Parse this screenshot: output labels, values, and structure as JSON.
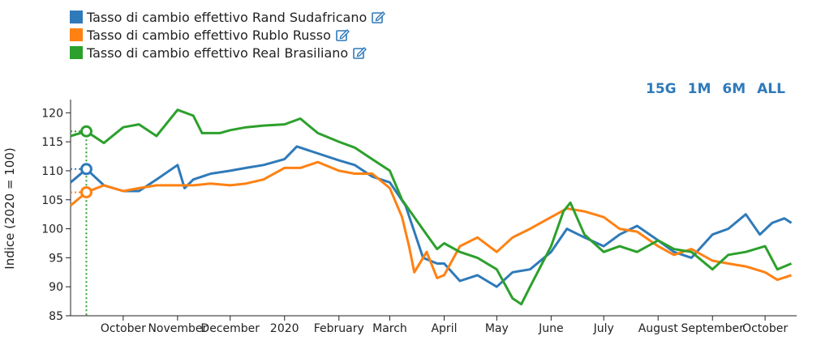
{
  "legend": {
    "items": [
      {
        "label": "Tasso di cambio effettivo Rand Sudafricano",
        "color": "#2f7ab9",
        "icon": "edit-icon"
      },
      {
        "label": "Tasso di cambio effettivo Rublo Russo",
        "color": "#ff8112",
        "icon": "edit-icon"
      },
      {
        "label": "Tasso di cambio effettivo Real Brasiliano",
        "color": "#2ca02c",
        "icon": "edit-icon"
      }
    ]
  },
  "range_buttons": [
    "15G",
    "1M",
    "6M",
    "ALL"
  ],
  "chart_data": {
    "type": "line",
    "ylabel": "Indice (2020 = 100)",
    "ylim": [
      85,
      122
    ],
    "yticks": [
      85,
      90,
      95,
      100,
      105,
      110,
      115,
      120
    ],
    "xlim": [
      "2019-09-01",
      "2020-10-19"
    ],
    "xticks": [
      {
        "date": "2019-10-01",
        "label": "October"
      },
      {
        "date": "2019-11-01",
        "label": "November"
      },
      {
        "date": "2019-12-01",
        "label": "December"
      },
      {
        "date": "2020-01-01",
        "label": "2020"
      },
      {
        "date": "2020-02-01",
        "label": "February"
      },
      {
        "date": "2020-03-01",
        "label": "March"
      },
      {
        "date": "2020-04-01",
        "label": "April"
      },
      {
        "date": "2020-05-01",
        "label": "May"
      },
      {
        "date": "2020-06-01",
        "label": "June"
      },
      {
        "date": "2020-07-01",
        "label": "July"
      },
      {
        "date": "2020-08-01",
        "label": "August"
      },
      {
        "date": "2020-09-01",
        "label": "September"
      },
      {
        "date": "2020-10-01",
        "label": "October"
      }
    ],
    "hover": {
      "date": "2019-09-10",
      "values": [
        110.3,
        106.3,
        116.8
      ]
    },
    "series": [
      {
        "name": "Tasso di cambio effettivo Rand Sudafricano",
        "color": "#2f7ab9",
        "points": [
          [
            "2019-09-01",
            108
          ],
          [
            "2019-09-10",
            110.3
          ],
          [
            "2019-09-20",
            107.5
          ],
          [
            "2019-10-01",
            106.5
          ],
          [
            "2019-10-10",
            106.5
          ],
          [
            "2019-10-20",
            108.5
          ],
          [
            "2019-11-01",
            111
          ],
          [
            "2019-11-05",
            107
          ],
          [
            "2019-11-10",
            108.5
          ],
          [
            "2019-11-20",
            109.5
          ],
          [
            "2019-12-01",
            110
          ],
          [
            "2019-12-10",
            110.5
          ],
          [
            "2019-12-20",
            111
          ],
          [
            "2020-01-01",
            112
          ],
          [
            "2020-01-08",
            114.2
          ],
          [
            "2020-01-20",
            113
          ],
          [
            "2020-02-01",
            111.8
          ],
          [
            "2020-02-10",
            111
          ],
          [
            "2020-02-20",
            109
          ],
          [
            "2020-03-01",
            108
          ],
          [
            "2020-03-10",
            104
          ],
          [
            "2020-03-20",
            95
          ],
          [
            "2020-03-28",
            94
          ],
          [
            "2020-04-01",
            94
          ],
          [
            "2020-04-10",
            91
          ],
          [
            "2020-04-20",
            92
          ],
          [
            "2020-05-01",
            90
          ],
          [
            "2020-05-10",
            92.5
          ],
          [
            "2020-05-20",
            93
          ],
          [
            "2020-06-01",
            96
          ],
          [
            "2020-06-10",
            100
          ],
          [
            "2020-06-20",
            98.5
          ],
          [
            "2020-07-01",
            97
          ],
          [
            "2020-07-10",
            99
          ],
          [
            "2020-07-20",
            100.5
          ],
          [
            "2020-08-01",
            98
          ],
          [
            "2020-08-10",
            96
          ],
          [
            "2020-08-20",
            95
          ],
          [
            "2020-09-01",
            99
          ],
          [
            "2020-09-10",
            100
          ],
          [
            "2020-09-20",
            102.5
          ],
          [
            "2020-09-28",
            99
          ],
          [
            "2020-10-05",
            101
          ],
          [
            "2020-10-12",
            101.8
          ],
          [
            "2020-10-16",
            101
          ]
        ]
      },
      {
        "name": "Tasso di cambio effettivo Rublo Russo",
        "color": "#ff8112",
        "points": [
          [
            "2019-09-01",
            104
          ],
          [
            "2019-09-10",
            106.3
          ],
          [
            "2019-09-20",
            107.5
          ],
          [
            "2019-10-01",
            106.5
          ],
          [
            "2019-10-10",
            107
          ],
          [
            "2019-10-20",
            107.5
          ],
          [
            "2019-11-01",
            107.5
          ],
          [
            "2019-11-10",
            107.5
          ],
          [
            "2019-11-20",
            107.8
          ],
          [
            "2019-12-01",
            107.5
          ],
          [
            "2019-12-10",
            107.8
          ],
          [
            "2019-12-20",
            108.5
          ],
          [
            "2020-01-01",
            110.5
          ],
          [
            "2020-01-10",
            110.5
          ],
          [
            "2020-01-20",
            111.5
          ],
          [
            "2020-02-01",
            110
          ],
          [
            "2020-02-10",
            109.5
          ],
          [
            "2020-02-20",
            109.5
          ],
          [
            "2020-03-01",
            107
          ],
          [
            "2020-03-08",
            102
          ],
          [
            "2020-03-12",
            97
          ],
          [
            "2020-03-15",
            92.5
          ],
          [
            "2020-03-22",
            96
          ],
          [
            "2020-03-28",
            91.5
          ],
          [
            "2020-04-01",
            92
          ],
          [
            "2020-04-10",
            97
          ],
          [
            "2020-04-20",
            98.5
          ],
          [
            "2020-05-01",
            96
          ],
          [
            "2020-05-10",
            98.5
          ],
          [
            "2020-05-20",
            100
          ],
          [
            "2020-06-01",
            102
          ],
          [
            "2020-06-10",
            103.5
          ],
          [
            "2020-06-20",
            103
          ],
          [
            "2020-07-01",
            102
          ],
          [
            "2020-07-10",
            100
          ],
          [
            "2020-07-20",
            99.5
          ],
          [
            "2020-08-01",
            97
          ],
          [
            "2020-08-10",
            95.5
          ],
          [
            "2020-08-20",
            96.5
          ],
          [
            "2020-09-01",
            94.5
          ],
          [
            "2020-09-10",
            94
          ],
          [
            "2020-09-20",
            93.5
          ],
          [
            "2020-10-01",
            92.5
          ],
          [
            "2020-10-08",
            91.2
          ],
          [
            "2020-10-16",
            92
          ]
        ]
      },
      {
        "name": "Tasso di cambio effettivo Real Brasiliano",
        "color": "#2ca02c",
        "points": [
          [
            "2019-09-01",
            116
          ],
          [
            "2019-09-10",
            116.8
          ],
          [
            "2019-09-20",
            114.8
          ],
          [
            "2019-10-01",
            117.5
          ],
          [
            "2019-10-10",
            118
          ],
          [
            "2019-10-20",
            116
          ],
          [
            "2019-11-01",
            120.5
          ],
          [
            "2019-11-10",
            119.5
          ],
          [
            "2019-11-15",
            116.5
          ],
          [
            "2019-11-25",
            116.5
          ],
          [
            "2019-12-01",
            117
          ],
          [
            "2019-12-10",
            117.5
          ],
          [
            "2019-12-20",
            117.8
          ],
          [
            "2020-01-01",
            118
          ],
          [
            "2020-01-10",
            119
          ],
          [
            "2020-01-20",
            116.5
          ],
          [
            "2020-02-01",
            115
          ],
          [
            "2020-02-10",
            114
          ],
          [
            "2020-02-20",
            112
          ],
          [
            "2020-03-01",
            110
          ],
          [
            "2020-03-08",
            105
          ],
          [
            "2020-03-15",
            102
          ],
          [
            "2020-03-22",
            99
          ],
          [
            "2020-03-28",
            96.5
          ],
          [
            "2020-04-01",
            97.5
          ],
          [
            "2020-04-10",
            96
          ],
          [
            "2020-04-20",
            95
          ],
          [
            "2020-05-01",
            93
          ],
          [
            "2020-05-10",
            88
          ],
          [
            "2020-05-15",
            87
          ],
          [
            "2020-05-20",
            90
          ],
          [
            "2020-06-01",
            97
          ],
          [
            "2020-06-08",
            103
          ],
          [
            "2020-06-12",
            104.5
          ],
          [
            "2020-06-20",
            99
          ],
          [
            "2020-07-01",
            96
          ],
          [
            "2020-07-10",
            97
          ],
          [
            "2020-07-20",
            96
          ],
          [
            "2020-08-01",
            98
          ],
          [
            "2020-08-10",
            96.5
          ],
          [
            "2020-08-20",
            96
          ],
          [
            "2020-09-01",
            93
          ],
          [
            "2020-09-10",
            95.5
          ],
          [
            "2020-09-20",
            96
          ],
          [
            "2020-10-01",
            97
          ],
          [
            "2020-10-08",
            93
          ],
          [
            "2020-10-16",
            94
          ]
        ]
      }
    ]
  }
}
